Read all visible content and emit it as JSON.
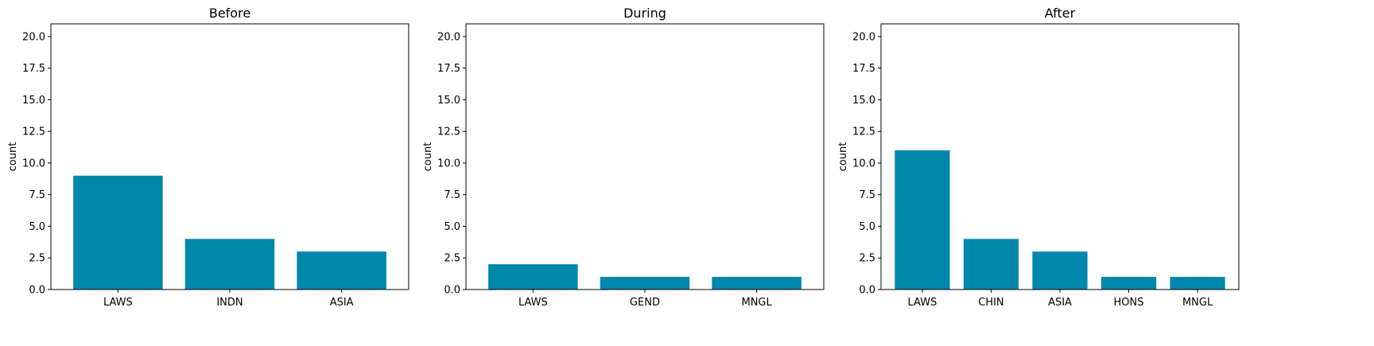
{
  "chart_data": [
    {
      "type": "bar",
      "title": "Before",
      "xlabel": "",
      "ylabel": "count",
      "categories": [
        "LAWS",
        "INDN",
        "ASIA"
      ],
      "values": [
        9,
        4,
        3
      ],
      "ylim": [
        0,
        21
      ],
      "yticks": [
        "0.0",
        "2.5",
        "5.0",
        "7.5",
        "10.0",
        "12.5",
        "15.0",
        "17.5",
        "20.0"
      ],
      "bar_color": "#0087ac",
      "grid": false
    },
    {
      "type": "bar",
      "title": "During",
      "xlabel": "",
      "ylabel": "count",
      "categories": [
        "LAWS",
        "GEND",
        "MNGL"
      ],
      "values": [
        2,
        1,
        1
      ],
      "ylim": [
        0,
        21
      ],
      "yticks": [
        "0.0",
        "2.5",
        "5.0",
        "7.5",
        "10.0",
        "12.5",
        "15.0",
        "17.5",
        "20.0"
      ],
      "bar_color": "#0087ac",
      "grid": false
    },
    {
      "type": "bar",
      "title": "After",
      "xlabel": "",
      "ylabel": "count",
      "categories": [
        "LAWS",
        "CHIN",
        "ASIA",
        "HONS",
        "MNGL"
      ],
      "values": [
        11,
        4,
        3,
        1,
        1
      ],
      "ylim": [
        0,
        21
      ],
      "yticks": [
        "0.0",
        "2.5",
        "5.0",
        "7.5",
        "10.0",
        "12.5",
        "15.0",
        "17.5",
        "20.0"
      ],
      "bar_color": "#0087ac",
      "grid": false
    }
  ]
}
